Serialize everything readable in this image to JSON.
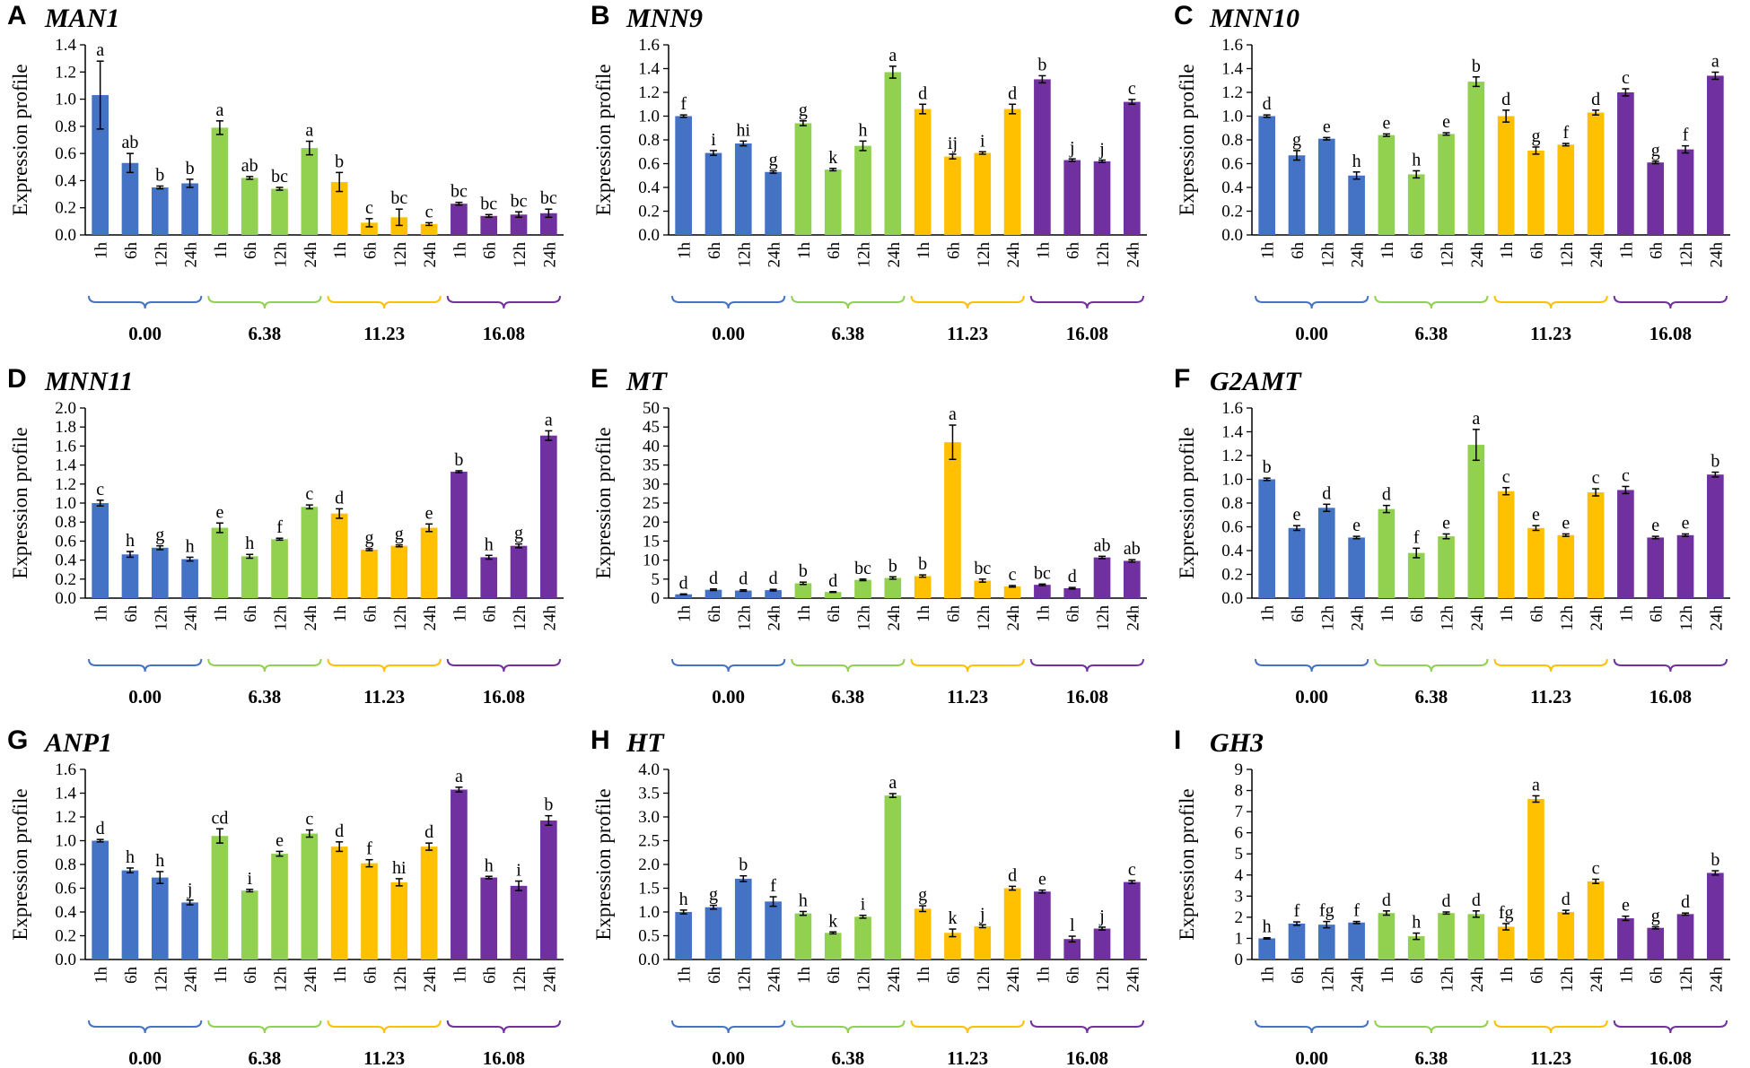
{
  "chart_data": [
    {
      "type": "bar",
      "panel": "A",
      "title": "MAN1",
      "ylabel": "Expression profile",
      "ylim": [
        0,
        1.4
      ],
      "ytick_step": 0.2,
      "ytick_decimals": 1,
      "categories": [
        "1h",
        "6h",
        "12h",
        "24h"
      ],
      "groups": [
        "0.00",
        "6.38",
        "11.23",
        "16.08"
      ],
      "colors": [
        "#4472c4",
        "#92d050",
        "#ffc000",
        "#7030a0"
      ],
      "series": [
        {
          "name": "0.00",
          "values": [
            1.03,
            0.53,
            0.35,
            0.38
          ],
          "errors": [
            0.25,
            0.07,
            0.01,
            0.03
          ],
          "letters": [
            "a",
            "ab",
            "b",
            "b"
          ]
        },
        {
          "name": "6.38",
          "values": [
            0.79,
            0.42,
            0.34,
            0.64
          ],
          "errors": [
            0.05,
            0.01,
            0.01,
            0.05
          ],
          "letters": [
            "a",
            "ab",
            "bc",
            "a"
          ]
        },
        {
          "name": "11.23",
          "values": [
            0.39,
            0.09,
            0.13,
            0.08
          ],
          "errors": [
            0.07,
            0.03,
            0.06,
            0.01
          ],
          "letters": [
            "b",
            "c",
            "bc",
            "c"
          ]
        },
        {
          "name": "16.08",
          "values": [
            0.23,
            0.14,
            0.15,
            0.16
          ],
          "errors": [
            0.01,
            0.01,
            0.02,
            0.03
          ],
          "letters": [
            "bc",
            "bc",
            "bc",
            "bc"
          ]
        }
      ]
    },
    {
      "type": "bar",
      "panel": "B",
      "title": "MNN9",
      "ylabel": "Expression profile",
      "ylim": [
        0,
        1.6
      ],
      "ytick_step": 0.2,
      "ytick_decimals": 1,
      "categories": [
        "1h",
        "6h",
        "12h",
        "24h"
      ],
      "groups": [
        "0.00",
        "6.38",
        "11.23",
        "16.08"
      ],
      "colors": [
        "#4472c4",
        "#92d050",
        "#ffc000",
        "#7030a0"
      ],
      "series": [
        {
          "name": "0.00",
          "values": [
            1.0,
            0.69,
            0.77,
            0.53
          ],
          "errors": [
            0.01,
            0.02,
            0.02,
            0.01
          ],
          "letters": [
            "f",
            "i",
            "hi",
            "g"
          ]
        },
        {
          "name": "6.38",
          "values": [
            0.94,
            0.55,
            0.75,
            1.37
          ],
          "errors": [
            0.02,
            0.01,
            0.04,
            0.05
          ],
          "letters": [
            "g",
            "k",
            "h",
            "a"
          ]
        },
        {
          "name": "11.23",
          "values": [
            1.06,
            0.66,
            0.69,
            1.06
          ],
          "errors": [
            0.04,
            0.02,
            0.01,
            0.04
          ],
          "letters": [
            "d",
            "ij",
            "i",
            "d"
          ]
        },
        {
          "name": "16.08",
          "values": [
            1.31,
            0.63,
            0.62,
            1.12
          ],
          "errors": [
            0.03,
            0.01,
            0.01,
            0.02
          ],
          "letters": [
            "b",
            "j",
            "j",
            "c"
          ]
        }
      ]
    },
    {
      "type": "bar",
      "panel": "C",
      "title": "MNN10",
      "ylabel": "Expression profile",
      "ylim": [
        0,
        1.6
      ],
      "ytick_step": 0.2,
      "ytick_decimals": 1,
      "categories": [
        "1h",
        "6h",
        "12h",
        "24h"
      ],
      "groups": [
        "0.00",
        "6.38",
        "11.23",
        "16.08"
      ],
      "colors": [
        "#4472c4",
        "#92d050",
        "#ffc000",
        "#7030a0"
      ],
      "series": [
        {
          "name": "0.00",
          "values": [
            1.0,
            0.67,
            0.81,
            0.5
          ],
          "errors": [
            0.01,
            0.04,
            0.01,
            0.03
          ],
          "letters": [
            "d",
            "g",
            "e",
            "h"
          ]
        },
        {
          "name": "6.38",
          "values": [
            0.84,
            0.51,
            0.85,
            1.29
          ],
          "errors": [
            0.01,
            0.03,
            0.01,
            0.04
          ],
          "letters": [
            "e",
            "h",
            "e",
            "b"
          ]
        },
        {
          "name": "11.23",
          "values": [
            1.0,
            0.71,
            0.76,
            1.03
          ],
          "errors": [
            0.05,
            0.03,
            0.01,
            0.02
          ],
          "letters": [
            "d",
            "g",
            "f",
            "d"
          ]
        },
        {
          "name": "16.08",
          "values": [
            1.2,
            0.61,
            0.72,
            1.34
          ],
          "errors": [
            0.03,
            0.01,
            0.03,
            0.03
          ],
          "letters": [
            "c",
            "g",
            "f",
            "a"
          ]
        }
      ]
    },
    {
      "type": "bar",
      "panel": "D",
      "title": "MNN11",
      "ylabel": "Expression profile",
      "ylim": [
        0,
        2.0
      ],
      "ytick_step": 0.2,
      "ytick_decimals": 1,
      "categories": [
        "1h",
        "6h",
        "12h",
        "24h"
      ],
      "groups": [
        "0.00",
        "6.38",
        "11.23",
        "16.08"
      ],
      "colors": [
        "#4472c4",
        "#92d050",
        "#ffc000",
        "#7030a0"
      ],
      "series": [
        {
          "name": "0.00",
          "values": [
            1.0,
            0.46,
            0.53,
            0.41
          ],
          "errors": [
            0.03,
            0.03,
            0.02,
            0.02
          ],
          "letters": [
            "c",
            "h",
            "g",
            "h"
          ]
        },
        {
          "name": "6.38",
          "values": [
            0.74,
            0.44,
            0.62,
            0.96
          ],
          "errors": [
            0.05,
            0.02,
            0.01,
            0.02
          ],
          "letters": [
            "e",
            "h",
            "f",
            "c"
          ]
        },
        {
          "name": "11.23",
          "values": [
            0.89,
            0.51,
            0.55,
            0.74
          ],
          "errors": [
            0.05,
            0.01,
            0.01,
            0.04
          ],
          "letters": [
            "d",
            "g",
            "g",
            "e"
          ]
        },
        {
          "name": "16.08",
          "values": [
            1.33,
            0.43,
            0.55,
            1.71
          ],
          "errors": [
            0.01,
            0.02,
            0.02,
            0.05
          ],
          "letters": [
            "b",
            "h",
            "g",
            "a"
          ]
        }
      ]
    },
    {
      "type": "bar",
      "panel": "E",
      "title": "MT",
      "ylabel": "Expression profile",
      "ylim": [
        0,
        50
      ],
      "ytick_step": 5,
      "ytick_decimals": 0,
      "categories": [
        "1h",
        "6h",
        "12h",
        "24h"
      ],
      "groups": [
        "0.00",
        "6.38",
        "11.23",
        "16.08"
      ],
      "colors": [
        "#4472c4",
        "#92d050",
        "#ffc000",
        "#7030a0"
      ],
      "series": [
        {
          "name": "0.00",
          "values": [
            1.0,
            2.2,
            2.0,
            2.1
          ],
          "errors": [
            0.1,
            0.2,
            0.2,
            0.2
          ],
          "letters": [
            "d",
            "d",
            "d",
            "d"
          ]
        },
        {
          "name": "6.38",
          "values": [
            3.9,
            1.6,
            4.8,
            5.3
          ],
          "errors": [
            0.3,
            0.1,
            0.2,
            0.3
          ],
          "letters": [
            "b",
            "d",
            "bc",
            "b"
          ]
        },
        {
          "name": "11.23",
          "values": [
            5.8,
            41.0,
            4.6,
            3.1
          ],
          "errors": [
            0.3,
            4.5,
            0.4,
            0.2
          ],
          "letters": [
            "b",
            "a",
            "bc",
            "c"
          ]
        },
        {
          "name": "16.08",
          "values": [
            3.5,
            2.6,
            10.7,
            9.8
          ],
          "errors": [
            0.2,
            0.2,
            0.3,
            0.3
          ],
          "letters": [
            "bc",
            "d",
            "ab",
            "ab"
          ]
        }
      ]
    },
    {
      "type": "bar",
      "panel": "F",
      "title": "G2AMT",
      "ylabel": "Expression profile",
      "ylim": [
        0,
        1.6
      ],
      "ytick_step": 0.2,
      "ytick_decimals": 1,
      "categories": [
        "1h",
        "6h",
        "12h",
        "24h"
      ],
      "groups": [
        "0.00",
        "6.38",
        "11.23",
        "16.08"
      ],
      "colors": [
        "#4472c4",
        "#92d050",
        "#ffc000",
        "#7030a0"
      ],
      "series": [
        {
          "name": "0.00",
          "values": [
            1.0,
            0.59,
            0.76,
            0.51
          ],
          "errors": [
            0.01,
            0.02,
            0.03,
            0.01
          ],
          "letters": [
            "b",
            "e",
            "d",
            "e"
          ]
        },
        {
          "name": "6.38",
          "values": [
            0.75,
            0.38,
            0.52,
            1.29
          ],
          "errors": [
            0.03,
            0.04,
            0.02,
            0.13
          ],
          "letters": [
            "d",
            "f",
            "e",
            "a"
          ]
        },
        {
          "name": "11.23",
          "values": [
            0.9,
            0.59,
            0.53,
            0.89
          ],
          "errors": [
            0.03,
            0.02,
            0.01,
            0.03
          ],
          "letters": [
            "c",
            "e",
            "e",
            "c"
          ]
        },
        {
          "name": "16.08",
          "values": [
            0.91,
            0.51,
            0.53,
            1.04
          ],
          "errors": [
            0.03,
            0.01,
            0.01,
            0.02
          ],
          "letters": [
            "c",
            "e",
            "e",
            "b"
          ]
        }
      ]
    },
    {
      "type": "bar",
      "panel": "G",
      "title": "ANP1",
      "ylabel": "Expression profile",
      "ylim": [
        0,
        1.6
      ],
      "ytick_step": 0.2,
      "ytick_decimals": 1,
      "categories": [
        "1h",
        "6h",
        "12h",
        "24h"
      ],
      "groups": [
        "0.00",
        "6.38",
        "11.23",
        "16.08"
      ],
      "colors": [
        "#4472c4",
        "#92d050",
        "#ffc000",
        "#7030a0"
      ],
      "series": [
        {
          "name": "0.00",
          "values": [
            1.0,
            0.75,
            0.69,
            0.48
          ],
          "errors": [
            0.01,
            0.02,
            0.05,
            0.02
          ],
          "letters": [
            "d",
            "h",
            "h",
            "j"
          ]
        },
        {
          "name": "6.38",
          "values": [
            1.04,
            0.58,
            0.89,
            1.06
          ],
          "errors": [
            0.06,
            0.01,
            0.02,
            0.03
          ],
          "letters": [
            "cd",
            "i",
            "e",
            "c"
          ]
        },
        {
          "name": "11.23",
          "values": [
            0.95,
            0.81,
            0.65,
            0.95
          ],
          "errors": [
            0.04,
            0.03,
            0.03,
            0.03
          ],
          "letters": [
            "d",
            "f",
            "hi",
            "d"
          ]
        },
        {
          "name": "16.08",
          "values": [
            1.43,
            0.69,
            0.62,
            1.17
          ],
          "errors": [
            0.02,
            0.01,
            0.04,
            0.04
          ],
          "letters": [
            "a",
            "h",
            "i",
            "b"
          ]
        }
      ]
    },
    {
      "type": "bar",
      "panel": "H",
      "title": "HT",
      "ylabel": "Expression profile",
      "ylim": [
        0,
        4.0
      ],
      "ytick_step": 0.5,
      "ytick_decimals": 1,
      "categories": [
        "1h",
        "6h",
        "12h",
        "24h"
      ],
      "groups": [
        "0.00",
        "6.38",
        "11.23",
        "16.08"
      ],
      "colors": [
        "#4472c4",
        "#92d050",
        "#ffc000",
        "#7030a0"
      ],
      "series": [
        {
          "name": "0.00",
          "values": [
            1.0,
            1.1,
            1.7,
            1.22
          ],
          "errors": [
            0.04,
            0.04,
            0.06,
            0.1
          ],
          "letters": [
            "h",
            "g",
            "b",
            "f"
          ]
        },
        {
          "name": "6.38",
          "values": [
            0.97,
            0.56,
            0.9,
            3.45
          ],
          "errors": [
            0.04,
            0.02,
            0.03,
            0.04
          ],
          "letters": [
            "h",
            "k",
            "i",
            "a"
          ]
        },
        {
          "name": "11.23",
          "values": [
            1.07,
            0.56,
            0.7,
            1.5
          ],
          "errors": [
            0.06,
            0.08,
            0.03,
            0.04
          ],
          "letters": [
            "g",
            "k",
            "j",
            "d"
          ]
        },
        {
          "name": "16.08",
          "values": [
            1.43,
            0.43,
            0.65,
            1.63
          ],
          "errors": [
            0.03,
            0.06,
            0.03,
            0.03
          ],
          "letters": [
            "e",
            "l",
            "j",
            "c"
          ]
        }
      ]
    },
    {
      "type": "bar",
      "panel": "I",
      "title": "GH3",
      "ylabel": "Expression profile",
      "ylim": [
        0,
        9
      ],
      "ytick_step": 1,
      "ytick_decimals": 0,
      "categories": [
        "1h",
        "6h",
        "12h",
        "24h"
      ],
      "groups": [
        "0.00",
        "6.38",
        "11.23",
        "16.08"
      ],
      "colors": [
        "#4472c4",
        "#92d050",
        "#ffc000",
        "#7030a0"
      ],
      "series": [
        {
          "name": "0.00",
          "values": [
            1.0,
            1.7,
            1.65,
            1.75
          ],
          "errors": [
            0.03,
            0.08,
            0.15,
            0.05
          ],
          "letters": [
            "h",
            "f",
            "fg",
            "f"
          ]
        },
        {
          "name": "6.38",
          "values": [
            2.2,
            1.1,
            2.2,
            2.15
          ],
          "errors": [
            0.1,
            0.15,
            0.05,
            0.15
          ],
          "letters": [
            "d",
            "h",
            "d",
            "d"
          ]
        },
        {
          "name": "11.23",
          "values": [
            1.55,
            7.6,
            2.25,
            3.7
          ],
          "errors": [
            0.15,
            0.15,
            0.08,
            0.1
          ],
          "letters": [
            "fg",
            "a",
            "d",
            "c"
          ]
        },
        {
          "name": "16.08",
          "values": [
            1.95,
            1.5,
            2.15,
            4.1
          ],
          "errors": [
            0.1,
            0.05,
            0.05,
            0.1
          ],
          "letters": [
            "e",
            "g",
            "d",
            "b"
          ]
        }
      ]
    }
  ]
}
